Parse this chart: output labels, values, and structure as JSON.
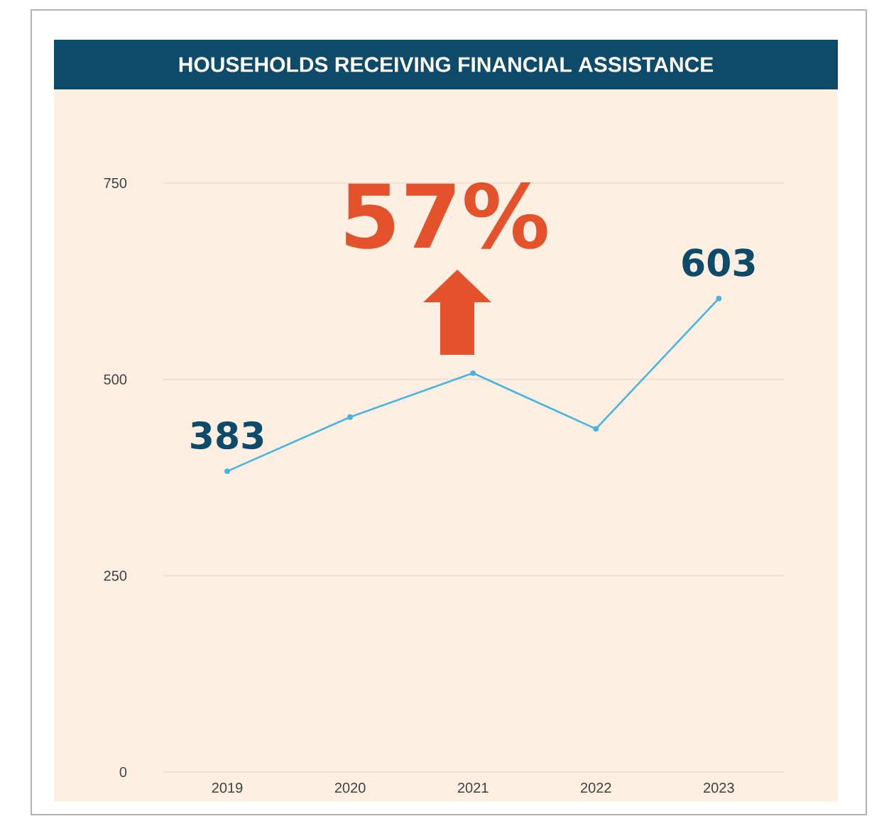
{
  "chart_data": {
    "type": "line",
    "title": "HOUSEHOLDS RECEIVING FINANCIAL ASSISTANCE",
    "categories": [
      "2019",
      "2020",
      "2021",
      "2022",
      "2023"
    ],
    "series": [
      {
        "color": "#4ab3e0",
        "values": [
          383,
          452,
          508,
          437,
          603
        ],
        "value_labels": [
          "383",
          null,
          null,
          null,
          "603"
        ]
      }
    ],
    "ylim": [
      0,
      750
    ],
    "yticks": [
      0,
      250,
      500,
      750
    ],
    "grid": "y",
    "marker": "circle",
    "annotations": [
      "57%"
    ]
  }
}
